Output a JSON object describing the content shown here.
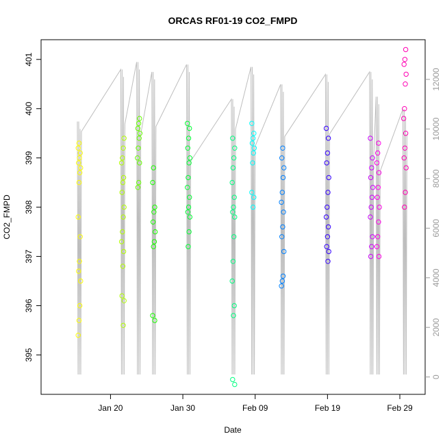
{
  "chart_data": {
    "type": "scatter",
    "title": "ORCAS RF01-19 CO2_FMPD",
    "xlabel": "Date",
    "ylabel": "CO2_FMPD",
    "x_ticks": [
      {
        "label": "Jan 20",
        "day": 20
      },
      {
        "label": "Jan 30",
        "day": 30
      },
      {
        "label": "Feb 09",
        "day": 40
      },
      {
        "label": "Feb 19",
        "day": 50
      },
      {
        "label": "Feb 29",
        "day": 60
      }
    ],
    "xlim_days": [
      10.4,
      63.5
    ],
    "ylim": [
      394.2,
      401.4
    ],
    "y_ticks": [
      "395",
      "396",
      "397",
      "398",
      "399",
      "400",
      "401"
    ],
    "y2_ticks": [
      "0",
      "2000",
      "4000",
      "6000",
      "8000",
      "10000",
      "12000"
    ],
    "y2lim": [
      -700,
      13600
    ],
    "colors": {
      "altitude_line": "#bdbdbd",
      "axis": "#000000",
      "secondary_axis": "#9a9a9a"
    },
    "flights": [
      {
        "day": 15.7,
        "color": "#FFFF00",
        "co2": [
          395.4,
          395.7,
          396.0,
          396.5,
          396.7,
          396.9,
          397.4,
          397.8,
          398.5,
          398.7,
          398.8,
          398.9,
          399.0,
          399.1,
          399.2,
          399.3
        ]
      },
      {
        "day": 21.7,
        "color": "#B2FF00",
        "co2": [
          395.6,
          396.1,
          396.2,
          396.8,
          397.1,
          397.3,
          397.5,
          397.8,
          398.0,
          398.3,
          398.5,
          398.6,
          398.9,
          399.0,
          399.2,
          399.4
        ]
      },
      {
        "day": 23.9,
        "color": "#66FF00",
        "co2": [
          398.4,
          398.5,
          398.9,
          399.0,
          399.2,
          399.4,
          399.5,
          399.6,
          399.7,
          399.8
        ]
      },
      {
        "day": 26.0,
        "color": "#1AFF00",
        "co2": [
          395.7,
          395.8,
          397.2,
          397.3,
          397.5,
          397.7,
          397.9,
          398.0,
          398.5,
          398.8
        ]
      },
      {
        "day": 30.8,
        "color": "#00FF33",
        "co2": [
          397.2,
          397.5,
          397.8,
          397.9,
          398.0,
          398.2,
          398.4,
          398.6,
          398.9,
          399.0,
          399.2,
          399.4,
          399.6,
          399.7
        ]
      },
      {
        "day": 37.0,
        "color": "#00FF80",
        "co2": [
          394.4,
          394.5,
          395.8,
          396.0,
          396.5,
          396.9,
          397.4,
          397.8,
          397.9,
          398.0,
          398.2,
          398.5,
          398.8,
          399.0,
          399.2,
          399.4
        ]
      },
      {
        "day": 39.7,
        "color": "#00FFFF",
        "co2": [
          398.0,
          398.2,
          398.3,
          398.9,
          399.1,
          399.2,
          399.3,
          399.4,
          399.5,
          399.7
        ]
      },
      {
        "day": 43.8,
        "color": "#0080FF",
        "co2": [
          396.4,
          396.5,
          396.6,
          397.1,
          397.4,
          397.6,
          397.9,
          398.1,
          398.3,
          398.6,
          398.8,
          399.0,
          399.2
        ]
      },
      {
        "day": 50.0,
        "color": "#3300FF",
        "co2": [
          396.9,
          397.1,
          397.2,
          397.4,
          397.6,
          397.8,
          398.0,
          398.3,
          398.6,
          398.9,
          399.1,
          399.4,
          399.6
        ]
      },
      {
        "day": 56.1,
        "color": "#CC00FF",
        "co2": [
          397.0,
          397.2,
          397.4,
          397.8,
          398.0,
          398.2,
          398.4,
          398.6,
          398.8,
          399.0,
          399.4
        ]
      },
      {
        "day": 57.0,
        "color": "#FF00E6",
        "co2": [
          397.0,
          397.2,
          397.4,
          397.7,
          398.0,
          398.2,
          398.4,
          398.7,
          398.9,
          399.1,
          399.3
        ]
      },
      {
        "day": 60.7,
        "color": "#FF00B3",
        "co2": [
          398.0,
          398.3,
          398.8,
          399.0,
          399.2,
          399.5,
          399.8,
          400.0,
          400.5,
          400.7,
          400.9,
          401.0,
          401.2
        ]
      }
    ]
  }
}
